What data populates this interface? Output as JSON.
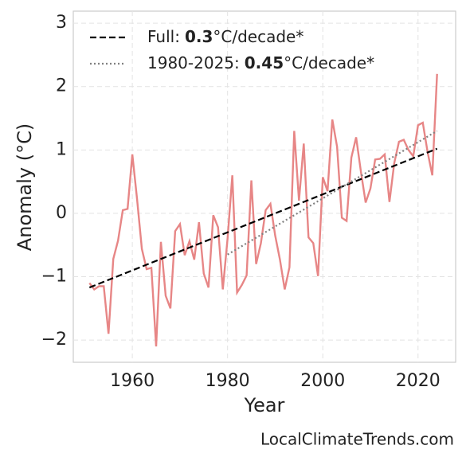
{
  "chart_data": {
    "type": "line",
    "x_label": "Year",
    "y_label": "Anomaly (°C)",
    "xlim": [
      1947.6,
      2027.9
    ],
    "ylim": [
      -2.35,
      3.19
    ],
    "xticks": [
      1960,
      1980,
      2000,
      2020
    ],
    "yticks": [
      {
        "value": -2,
        "label": "−2"
      },
      {
        "value": -1,
        "label": "−1"
      },
      0,
      1,
      2,
      3
    ],
    "grid": true,
    "legend": "upper left",
    "series": [
      {
        "color": "#e78686",
        "linestyle": "solid",
        "x": [
          1951,
          1952,
          1953,
          1954,
          1955,
          1956,
          1957,
          1958,
          1959,
          1960,
          1961,
          1962,
          1963,
          1964,
          1965,
          1966,
          1967,
          1968,
          1969,
          1970,
          1971,
          1972,
          1973,
          1974,
          1975,
          1976,
          1977,
          1978,
          1979,
          1980,
          1981,
          1982,
          1983,
          1984,
          1985,
          1986,
          1987,
          1988,
          1989,
          1990,
          1991,
          1992,
          1993,
          1994,
          1995,
          1996,
          1997,
          1998,
          1999,
          2000,
          2001,
          2002,
          2003,
          2004,
          2005,
          2006,
          2007,
          2008,
          2009,
          2010,
          2011,
          2012,
          2013,
          2014,
          2015,
          2016,
          2017,
          2018,
          2019,
          2020,
          2021,
          2022,
          2023,
          2024
        ],
        "values": [
          -1.1,
          -1.2,
          -1.15,
          -1.15,
          -1.9,
          -0.72,
          -0.43,
          0.05,
          0.07,
          0.93,
          0.22,
          -0.56,
          -0.88,
          -0.86,
          -2.1,
          -0.45,
          -1.3,
          -1.5,
          -0.28,
          -0.17,
          -0.66,
          -0.44,
          -0.73,
          -0.14,
          -0.95,
          -1.17,
          -0.03,
          -0.22,
          -1.2,
          -0.4,
          0.6,
          -1.25,
          -1.13,
          -0.98,
          0.52,
          -0.8,
          -0.47,
          0.05,
          0.15,
          -0.35,
          -0.73,
          -1.2,
          -0.85,
          1.3,
          0.2,
          1.1,
          -0.38,
          -0.47,
          -0.99,
          0.57,
          0.35,
          1.48,
          1.05,
          -0.07,
          -0.12,
          0.88,
          1.2,
          0.66,
          0.17,
          0.39,
          0.85,
          0.86,
          0.93,
          0.18,
          0.79,
          1.13,
          1.16,
          1.0,
          0.9,
          1.39,
          1.43,
          0.97,
          0.6,
          2.2
        ]
      },
      {
        "name": "Full:",
        "slope": 0.3,
        "slope_unit": "°C/decade*",
        "color": "#000000",
        "linestyle": "dashed",
        "x": [
          1951,
          2024
        ],
        "values": [
          -1.17,
          1.02
        ]
      },
      {
        "name": "1980-2025:",
        "slope": 0.45,
        "slope_unit": "°C/decade*",
        "color": "#808080",
        "linestyle": "dotted",
        "x": [
          1980,
          2024
        ],
        "values": [
          -0.65,
          1.3
        ]
      }
    ]
  },
  "footer": "LocalClimateTrends.com"
}
